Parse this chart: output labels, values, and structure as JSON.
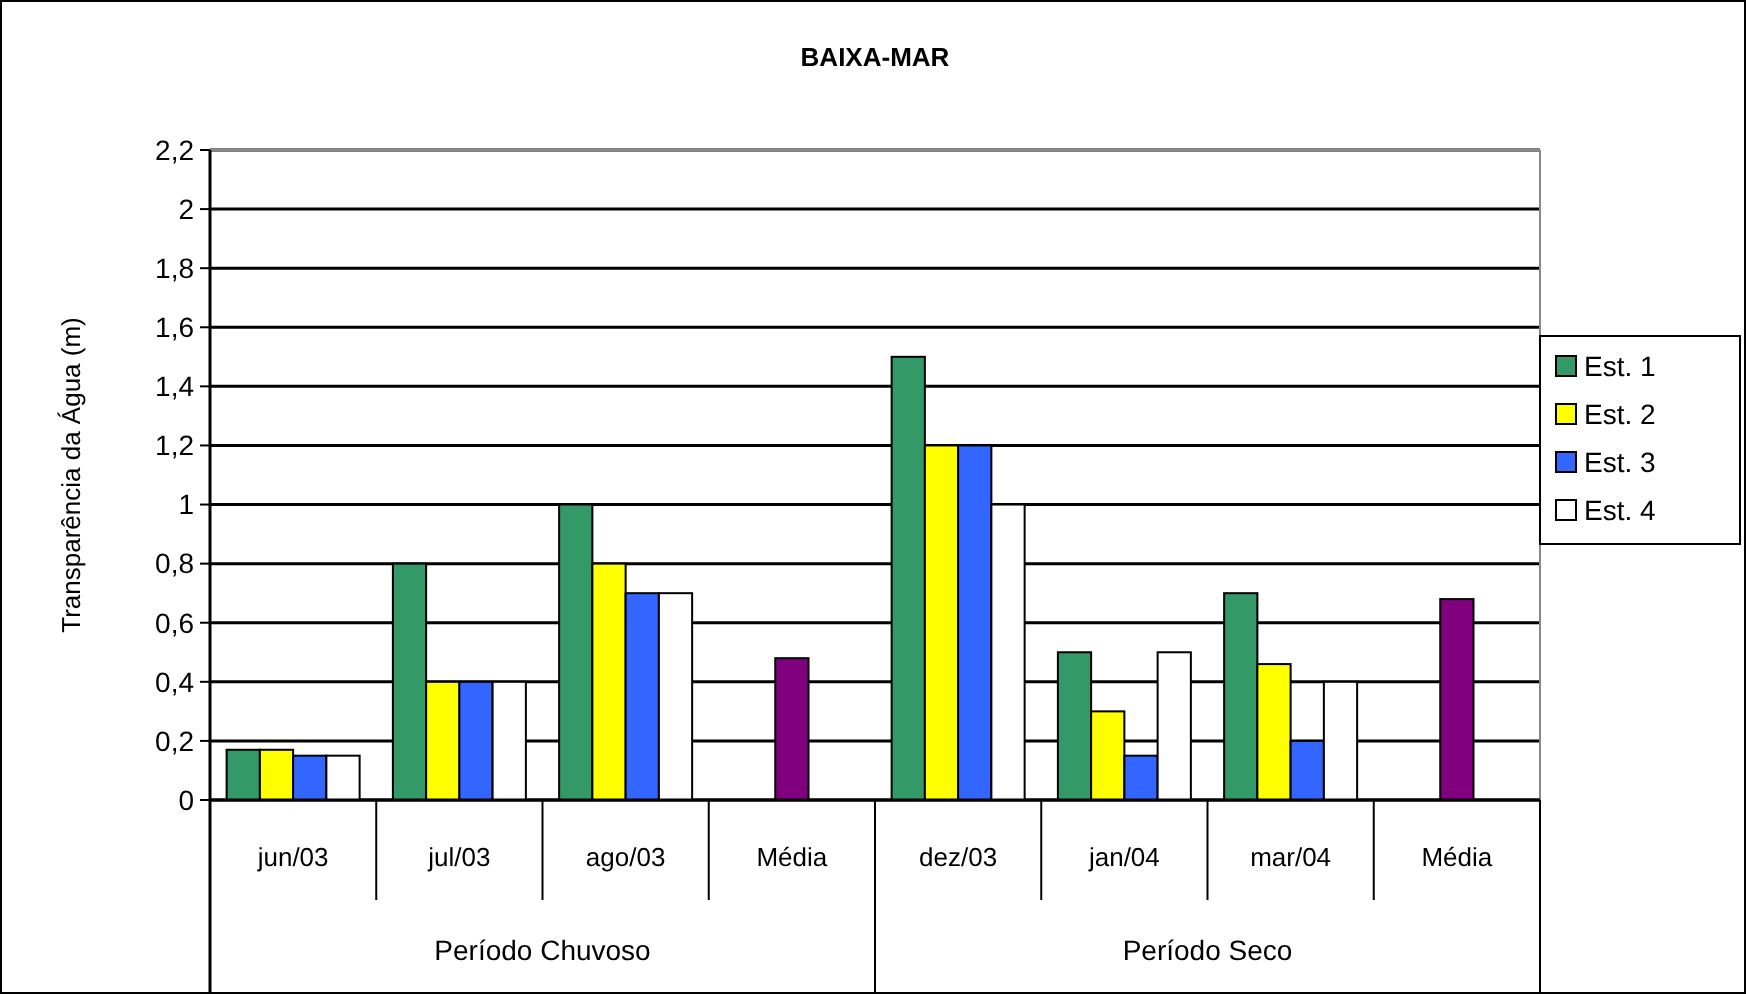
{
  "chart_data": {
    "type": "bar",
    "title": "BAIXA-MAR",
    "ylabel": "Transparência da Água (m)",
    "categories": [
      "jun/03",
      "jul/03",
      "ago/03",
      "Média",
      "dez/03",
      "jan/04",
      "mar/04",
      "Média"
    ],
    "series": [
      {
        "name": "Est. 1",
        "color": "#339966",
        "values": [
          0.17,
          0.8,
          1.0,
          null,
          1.5,
          0.5,
          0.7,
          null
        ]
      },
      {
        "name": "Est. 2",
        "color": "#ffff00",
        "values": [
          0.17,
          0.4,
          0.8,
          null,
          1.2,
          0.3,
          0.46,
          null
        ]
      },
      {
        "name": "Est. 3",
        "color": "#3366ff",
        "values": [
          0.15,
          0.4,
          0.7,
          null,
          1.2,
          0.15,
          0.2,
          null
        ]
      },
      {
        "name": "Est. 4",
        "color": "#ffffff",
        "values": [
          0.15,
          0.4,
          0.7,
          null,
          1.0,
          0.5,
          0.4,
          null
        ]
      },
      {
        "color": "#800080",
        "values": [
          null,
          null,
          null,
          0.48,
          null,
          null,
          null,
          0.68
        ]
      }
    ],
    "annotations": [
      "Período Chuvoso",
      "Período Seco"
    ],
    "ylim": [
      0,
      2.2
    ],
    "yticks": [
      {
        "value": 0,
        "label": "0"
      },
      {
        "value": 0.2,
        "label": "0,2"
      },
      {
        "value": 0.4,
        "label": "0,4"
      },
      {
        "value": 0.6,
        "label": "0,6"
      },
      {
        "value": 0.8,
        "label": "0,8"
      },
      {
        "value": 1,
        "label": "1"
      },
      {
        "value": 1.2,
        "label": "1,2"
      },
      {
        "value": 1.4,
        "label": "1,4"
      },
      {
        "value": 1.6,
        "label": "1,6"
      },
      {
        "value": 1.8,
        "label": "1,8"
      },
      {
        "value": 2,
        "label": "2"
      },
      {
        "value": 2.2,
        "label": "2,2"
      }
    ],
    "grid": "y",
    "legend": "right"
  }
}
